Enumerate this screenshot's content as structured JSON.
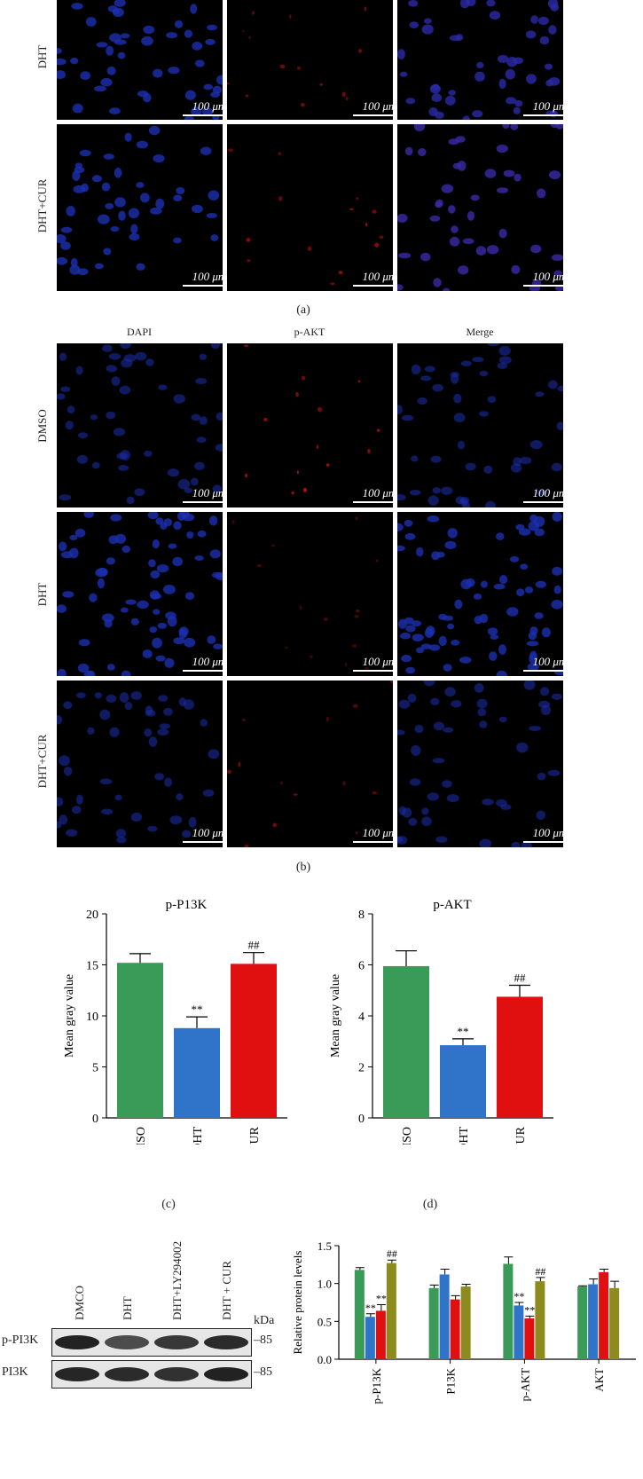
{
  "panel_a": {
    "rows": [
      "DHT",
      "DHT+CUR"
    ],
    "scale_bar": "100 μm",
    "label": "(a)"
  },
  "panel_b": {
    "columns": [
      "DAPI",
      "p-AKT",
      "Merge"
    ],
    "rows": [
      "DMSO",
      "DHT",
      "DHT+CUR"
    ],
    "scale_bar": "100 μm",
    "label": "(b)"
  },
  "colors": {
    "DMSO": "#3a9a57",
    "DHT": "#2f74c9",
    "DHT+CUR": "#e01010",
    "CUR": "#8c8c1e"
  },
  "chart_data": [
    {
      "type": "bar",
      "title": "p-P13K",
      "ylabel": "Mean gray value",
      "categories": [
        "DMSO",
        "DHT",
        "DHT + CUR"
      ],
      "values": [
        15.2,
        8.8,
        15.1
      ],
      "errors": [
        0.9,
        1.1,
        1.1
      ],
      "annotations": [
        "",
        "**",
        "##"
      ],
      "ylim": [
        0,
        20
      ],
      "yticks": [
        0,
        5,
        10,
        15,
        20
      ],
      "label": "(c)"
    },
    {
      "type": "bar",
      "title": "p-AKT",
      "ylabel": "Mean gray value",
      "categories": [
        "DMSO",
        "DHT",
        "DHT + CUR"
      ],
      "values": [
        5.95,
        2.85,
        4.75
      ],
      "errors": [
        0.6,
        0.25,
        0.45
      ],
      "annotations": [
        "",
        "**",
        "##"
      ],
      "ylim": [
        0,
        8
      ],
      "yticks": [
        0,
        2,
        4,
        6,
        8
      ],
      "label": "(d)"
    },
    {
      "type": "bar",
      "title": "",
      "ylabel": "Relative protein levels",
      "categories": [
        "p-P13K",
        "P13K",
        "p-AKT",
        "AKT"
      ],
      "series": [
        {
          "values": [
            1.18,
            0.94,
            1.26,
            0.96
          ],
          "errors": [
            0.03,
            0.04,
            0.09,
            0.01
          ],
          "marks": [
            "",
            "",
            "",
            ""
          ]
        },
        {
          "values": [
            0.56,
            1.12,
            0.71,
            0.99
          ],
          "errors": [
            0.04,
            0.07,
            0.04,
            0.07
          ],
          "marks": [
            "**",
            "",
            "**",
            ""
          ]
        },
        {
          "values": [
            0.64,
            0.79,
            0.54,
            1.15
          ],
          "errors": [
            0.08,
            0.05,
            0.03,
            0.04
          ],
          "marks": [
            "**",
            "",
            "**",
            ""
          ]
        },
        {
          "values": [
            1.27,
            0.96,
            1.03,
            0.94
          ],
          "errors": [
            0.04,
            0.03,
            0.05,
            0.09
          ],
          "marks": [
            "##",
            "",
            "##",
            ""
          ]
        }
      ],
      "ylim": [
        0,
        1.5
      ],
      "yticks": [
        "0.0",
        "0.5",
        "1.0",
        "1.5"
      ]
    }
  ],
  "western_blot": {
    "lanes": [
      "DMCO",
      "DHT",
      "DHT+LY294002",
      "DHT + CUR"
    ],
    "kda_label": "kDa",
    "bands": [
      {
        "name": "p-PI3K",
        "kda": "–85"
      },
      {
        "name": "PI3K",
        "kda": "–85"
      }
    ]
  }
}
